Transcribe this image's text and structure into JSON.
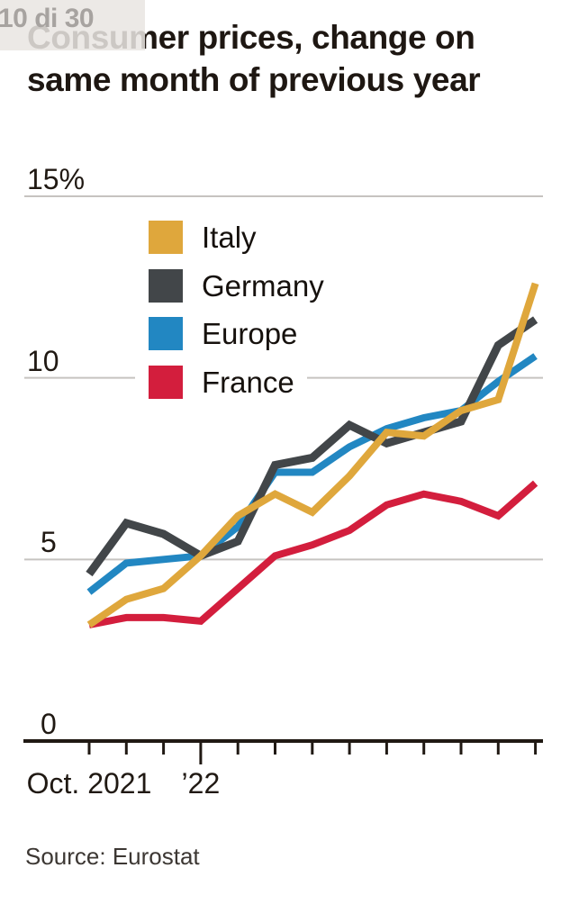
{
  "overlay": {
    "counter": "10 di 30"
  },
  "title_lines": [
    "Consumer prices, change on",
    "same month of previous year"
  ],
  "source": "Source: Eurostat",
  "chart_data": {
    "type": "line",
    "title": "Consumer prices, change on same month of previous year",
    "x": [
      "Oct 2021",
      "Nov 2021",
      "Dec 2021",
      "Jan 2022",
      "Feb 2022",
      "Mar 2022",
      "Apr 2022",
      "May 2022",
      "Jun 2022",
      "Jul 2022",
      "Aug 2022",
      "Sep 2022",
      "Oct 2022"
    ],
    "series": [
      {
        "name": "Italy",
        "color": "#DFA73C",
        "values": [
          3.2,
          3.9,
          4.2,
          5.1,
          6.2,
          6.8,
          6.3,
          7.3,
          8.5,
          8.4,
          9.1,
          9.4,
          12.6
        ]
      },
      {
        "name": "Germany",
        "color": "#424649",
        "values": [
          4.6,
          6.0,
          5.7,
          5.1,
          5.5,
          7.6,
          7.8,
          8.7,
          8.2,
          8.5,
          8.8,
          10.9,
          11.6
        ]
      },
      {
        "name": "Europe",
        "color": "#2287C2",
        "values": [
          4.1,
          4.9,
          5.0,
          5.1,
          5.9,
          7.4,
          7.4,
          8.1,
          8.6,
          8.9,
          9.1,
          9.9,
          10.6
        ]
      },
      {
        "name": "France",
        "color": "#D31E3D",
        "values": [
          3.2,
          3.4,
          3.4,
          3.3,
          4.2,
          5.1,
          5.4,
          5.8,
          6.5,
          6.8,
          6.6,
          6.2,
          7.1
        ]
      }
    ],
    "ylim": [
      0,
      15
    ],
    "yticks": [
      {
        "value": 0,
        "label": "0"
      },
      {
        "value": 5,
        "label": "5"
      },
      {
        "value": 10,
        "label": "10"
      },
      {
        "value": 15,
        "label": "15%"
      }
    ],
    "xticks": [
      {
        "index": 0,
        "label": "Oct. 2021"
      },
      {
        "index": 3,
        "label": "’22"
      }
    ],
    "long_xtick_index": 3,
    "grid": "horizontal",
    "legend_position": "inside-top-left",
    "axis_color": "#201913",
    "gridline_color": "#c6c3c0"
  }
}
